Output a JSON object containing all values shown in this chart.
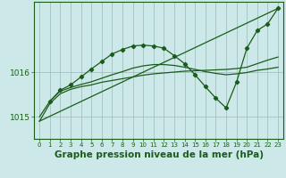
{
  "background_color": "#cce8e8",
  "plot_bg_color": "#cce8e8",
  "grid_color": "#99bbbb",
  "line_color": "#1a5c1a",
  "xlabel": "Graphe pression niveau de la mer (hPa)",
  "xlabel_fontsize": 7.5,
  "xtick_fontsize": 5.0,
  "ytick_fontsize": 6.5,
  "xticks": [
    0,
    1,
    2,
    3,
    4,
    5,
    6,
    7,
    8,
    9,
    10,
    11,
    12,
    13,
    14,
    15,
    16,
    17,
    18,
    19,
    20,
    21,
    22,
    23
  ],
  "ytick_vals": [
    1015,
    1016
  ],
  "ytick_labels": [
    "1015",
    "1016"
  ],
  "ylim": [
    1014.5,
    1017.6
  ],
  "xlim": [
    -0.5,
    23.5
  ],
  "series": [
    {
      "x": [
        0,
        23
      ],
      "y": [
        1014.9,
        1017.45
      ],
      "marker": false,
      "lw": 0.9
    },
    {
      "x": [
        0,
        1,
        2,
        3,
        4,
        5,
        6,
        7,
        8,
        9,
        10,
        11,
        12,
        13,
        14,
        15,
        16,
        17,
        18,
        19,
        20,
        21,
        22,
        23
      ],
      "y": [
        1014.9,
        1015.3,
        1015.52,
        1015.62,
        1015.68,
        1015.72,
        1015.78,
        1015.82,
        1015.86,
        1015.9,
        1015.94,
        1015.97,
        1015.99,
        1016.01,
        1016.03,
        1016.04,
        1016.05,
        1016.06,
        1016.07,
        1016.09,
        1016.12,
        1016.2,
        1016.28,
        1016.35
      ],
      "marker": false,
      "lw": 0.9
    },
    {
      "x": [
        0,
        1,
        2,
        3,
        4,
        5,
        6,
        7,
        8,
        9,
        10,
        11,
        12,
        13,
        14,
        15,
        16,
        17,
        18,
        19,
        20,
        21,
        22,
        23
      ],
      "y": [
        1015.0,
        1015.35,
        1015.58,
        1015.66,
        1015.73,
        1015.79,
        1015.87,
        1015.95,
        1016.02,
        1016.1,
        1016.15,
        1016.18,
        1016.18,
        1016.16,
        1016.12,
        1016.07,
        1016.02,
        1015.98,
        1015.95,
        1015.97,
        1016.0,
        1016.05,
        1016.08,
        1016.12
      ],
      "marker": false,
      "lw": 0.9
    },
    {
      "x": [
        1,
        2,
        3,
        4,
        5,
        6,
        7,
        8,
        9,
        10,
        11,
        12,
        13,
        14,
        15,
        16,
        17,
        18,
        19,
        20,
        21,
        22,
        23
      ],
      "y": [
        1015.35,
        1015.6,
        1015.72,
        1015.9,
        1016.08,
        1016.25,
        1016.42,
        1016.52,
        1016.6,
        1016.62,
        1016.6,
        1016.55,
        1016.38,
        1016.2,
        1015.95,
        1015.68,
        1015.42,
        1015.2,
        1015.78,
        1016.55,
        1016.95,
        1017.1,
        1017.45
      ],
      "marker": true,
      "lw": 0.9
    }
  ]
}
